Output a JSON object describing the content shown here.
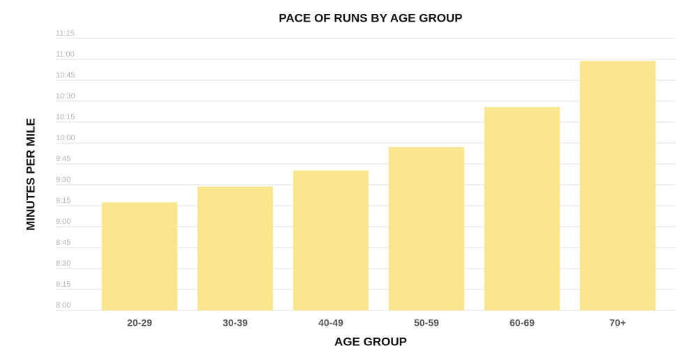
{
  "chart_data": {
    "type": "bar",
    "title": "PACE OF RUNS BY AGE GROUP",
    "x_label": "AGE GROUP",
    "y_label": "MINUTES PER MILE",
    "categories": [
      "20-29",
      "30-39",
      "40-49",
      "50-59",
      "60-69",
      "70+"
    ],
    "values": [
      9.29,
      9.48,
      9.67,
      9.95,
      10.43,
      10.98
    ],
    "color": "#f9e68f",
    "ylim": [
      8,
      11.25
    ],
    "yticks": [
      {
        "value": 8,
        "label": "8:00"
      },
      {
        "value": 8.25,
        "label": "8:15"
      },
      {
        "value": 8.5,
        "label": "8:30"
      },
      {
        "value": 8.75,
        "label": "8:45"
      },
      {
        "value": 9,
        "label": "9:00"
      },
      {
        "value": 9.25,
        "label": "9:15"
      },
      {
        "value": 9.5,
        "label": "9:30"
      },
      {
        "value": 9.75,
        "label": "9:45"
      },
      {
        "value": 10,
        "label": "10:00"
      },
      {
        "value": 10.25,
        "label": "10:15"
      },
      {
        "value": 10.5,
        "label": "10:30"
      },
      {
        "value": 10.75,
        "label": "10:45"
      },
      {
        "value": 11,
        "label": "11:00"
      },
      {
        "value": 11.25,
        "label": "11:15"
      }
    ],
    "grid": true
  }
}
